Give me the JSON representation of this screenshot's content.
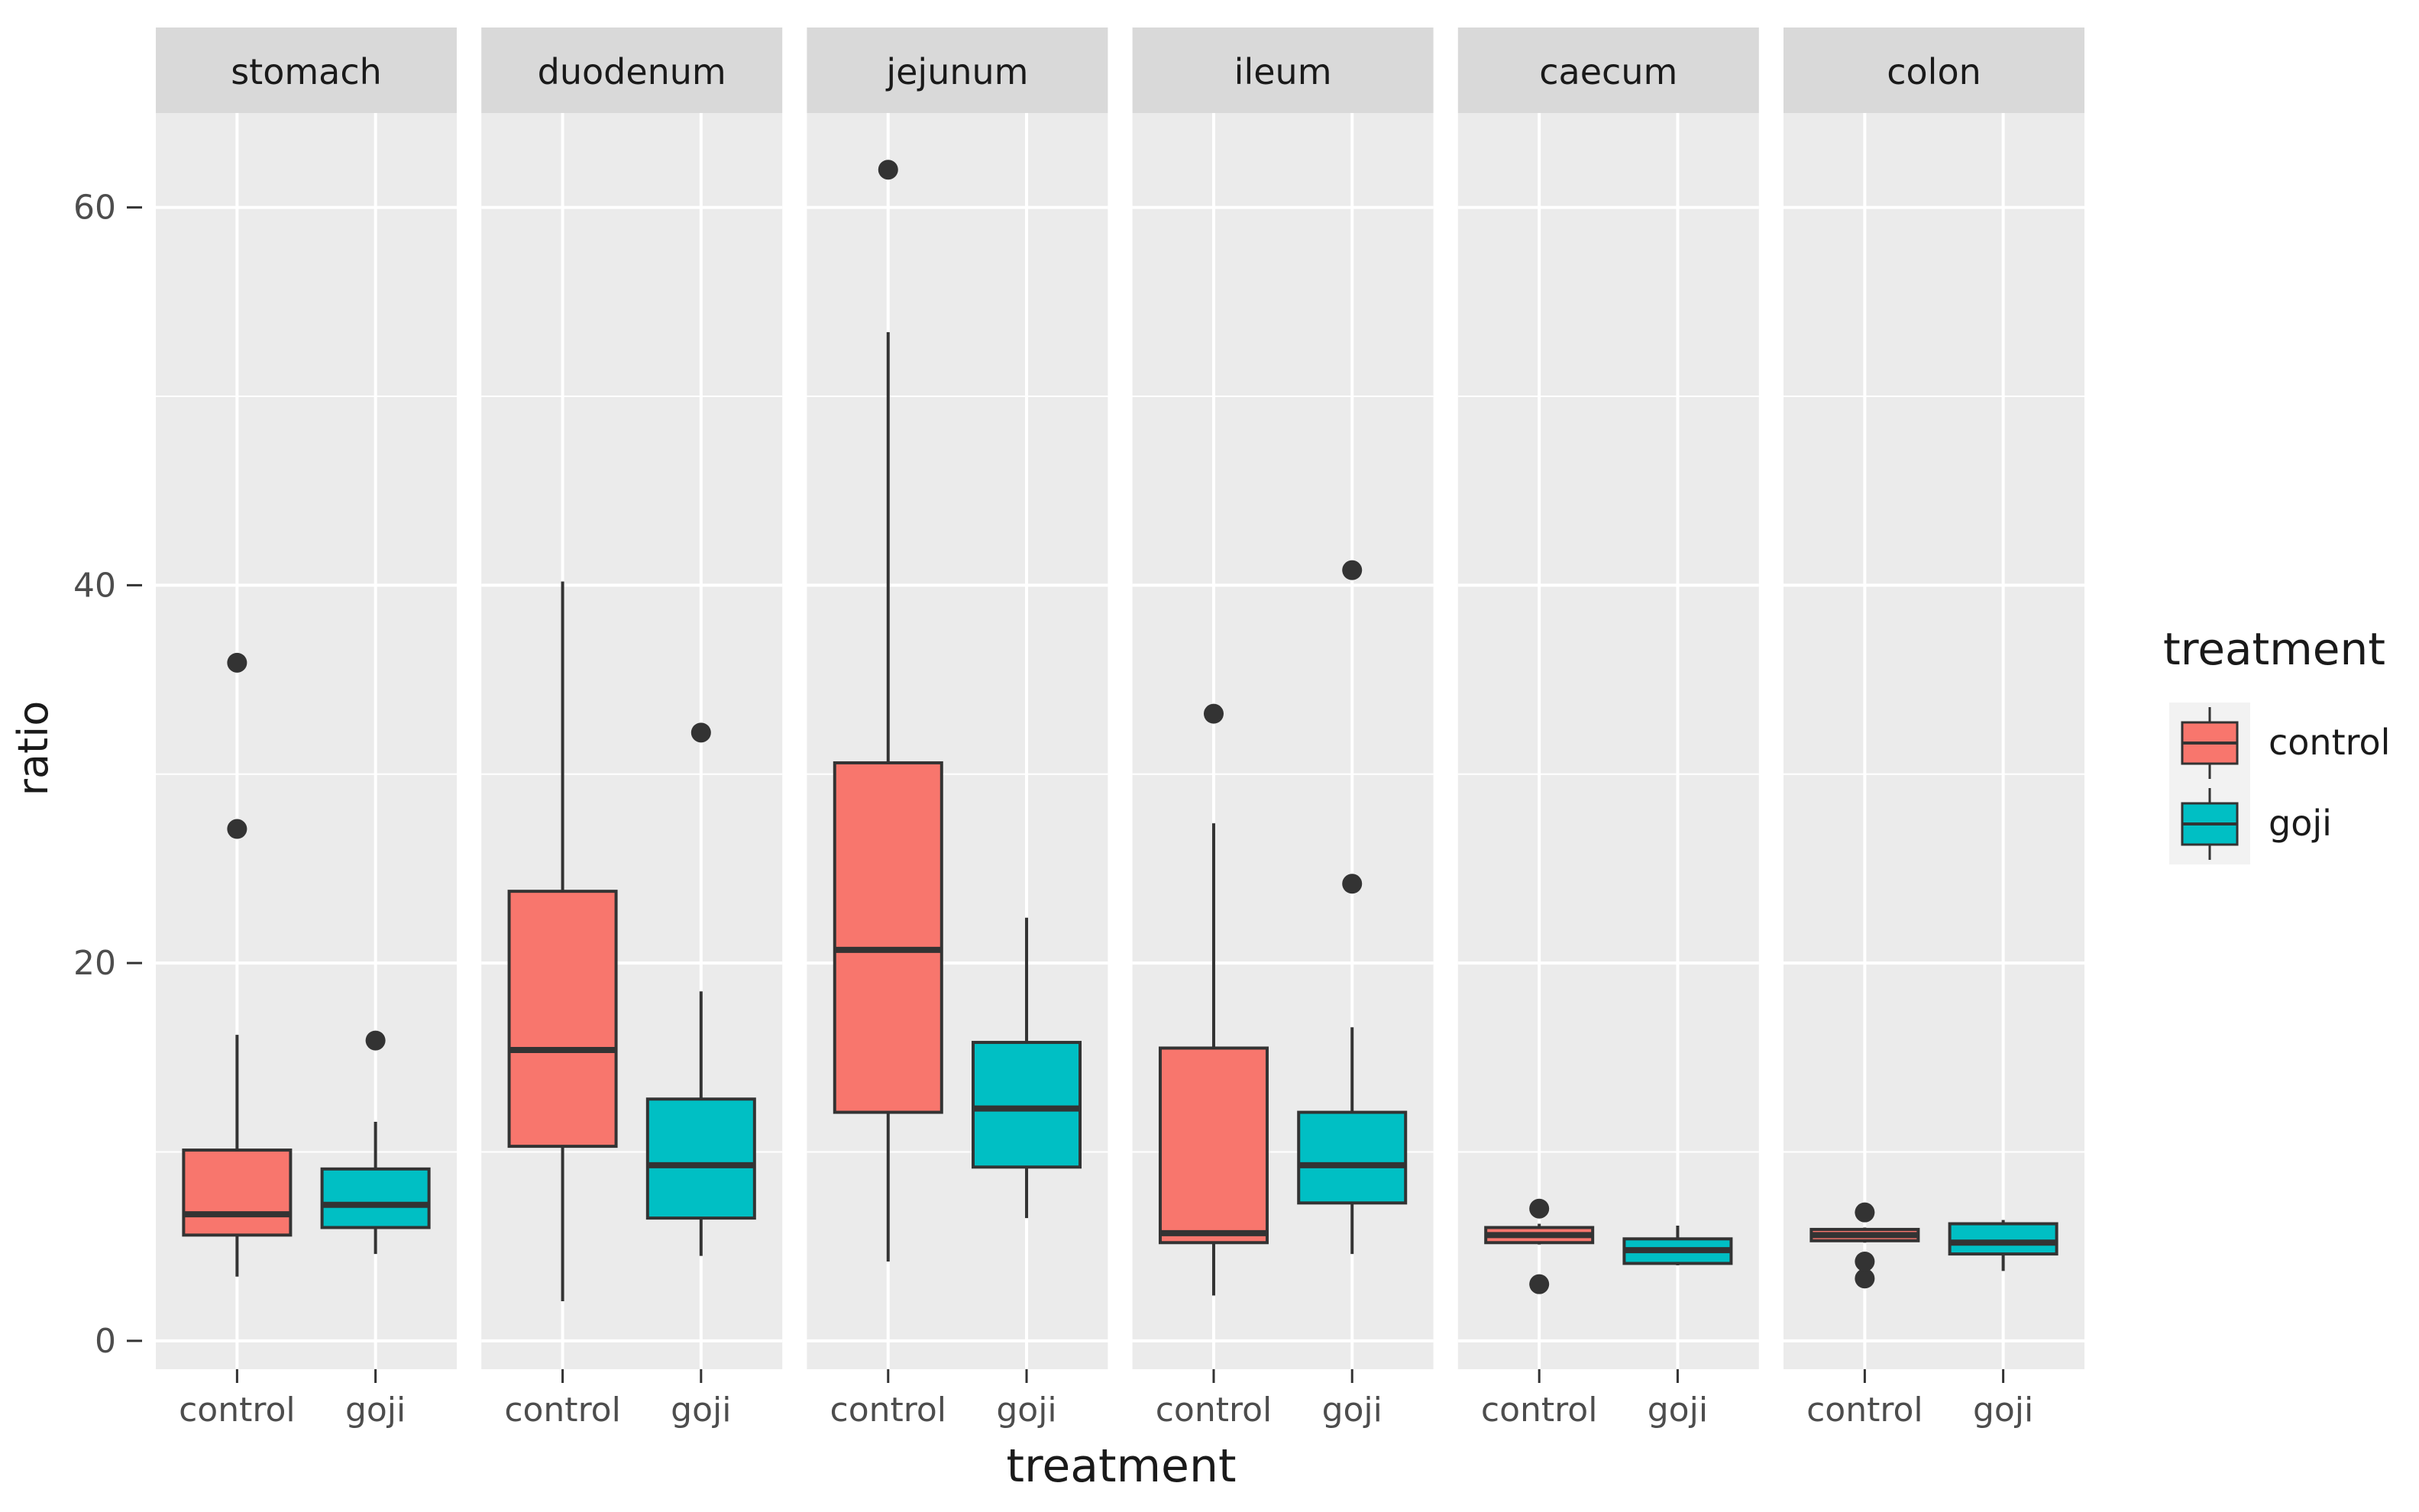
{
  "chart_data": {
    "type": "boxplot",
    "facets": [
      "stomach",
      "duodenum",
      "jejunum",
      "ileum",
      "caecum",
      "colon"
    ],
    "categories": [
      "control",
      "goji"
    ],
    "xlabel": "treatment",
    "ylabel": "ratio",
    "ylim": [
      -1.5,
      65
    ],
    "yticks": [
      0,
      20,
      40,
      60
    ],
    "grid": true,
    "legend": {
      "title": "treatment",
      "position": "right",
      "entries": [
        {
          "label": "control",
          "color": "#f8766d"
        },
        {
          "label": "goji",
          "color": "#00bfc4"
        }
      ]
    },
    "colors": {
      "control": "#f8766d",
      "goji": "#00bfc4",
      "panel": "#ebebeb",
      "strip": "#d9d9d9"
    },
    "series": [
      {
        "facet": "stomach",
        "group": "control",
        "whisker_low": 3.4,
        "q1": 5.6,
        "median": 6.7,
        "q3": 10.1,
        "whisker_high": 16.2,
        "outliers": [
          27.1,
          35.9
        ]
      },
      {
        "facet": "stomach",
        "group": "goji",
        "whisker_low": 4.6,
        "q1": 6.0,
        "median": 7.2,
        "q3": 9.1,
        "whisker_high": 11.6,
        "outliers": [
          15.9
        ]
      },
      {
        "facet": "duodenum",
        "group": "control",
        "whisker_low": 2.1,
        "q1": 10.3,
        "median": 15.4,
        "q3": 23.8,
        "whisker_high": 40.2,
        "outliers": []
      },
      {
        "facet": "duodenum",
        "group": "goji",
        "whisker_low": 4.5,
        "q1": 6.5,
        "median": 9.3,
        "q3": 12.8,
        "whisker_high": 18.5,
        "outliers": [
          32.2
        ]
      },
      {
        "facet": "jejunum",
        "group": "control",
        "whisker_low": 4.2,
        "q1": 12.1,
        "median": 20.7,
        "q3": 30.6,
        "whisker_high": 53.4,
        "outliers": [
          62.0
        ]
      },
      {
        "facet": "jejunum",
        "group": "goji",
        "whisker_low": 6.5,
        "q1": 9.2,
        "median": 12.3,
        "q3": 15.8,
        "whisker_high": 22.4,
        "outliers": []
      },
      {
        "facet": "ileum",
        "group": "control",
        "whisker_low": 2.4,
        "q1": 5.2,
        "median": 5.7,
        "q3": 15.5,
        "whisker_high": 27.4,
        "outliers": [
          33.2
        ]
      },
      {
        "facet": "ileum",
        "group": "goji",
        "whisker_low": 4.6,
        "q1": 7.3,
        "median": 9.3,
        "q3": 12.1,
        "whisker_high": 16.6,
        "outliers": [
          24.2,
          40.8
        ]
      },
      {
        "facet": "caecum",
        "group": "control",
        "whisker_low": 5.1,
        "q1": 5.2,
        "median": 5.6,
        "q3": 6.0,
        "whisker_high": 6.2,
        "outliers": [
          3.0,
          7.0
        ]
      },
      {
        "facet": "caecum",
        "group": "goji",
        "whisker_low": 4.0,
        "q1": 4.1,
        "median": 4.8,
        "q3": 5.4,
        "whisker_high": 6.1,
        "outliers": []
      },
      {
        "facet": "colon",
        "group": "control",
        "whisker_low": 5.2,
        "q1": 5.3,
        "median": 5.6,
        "q3": 5.9,
        "whisker_high": 6.0,
        "outliers": [
          3.3,
          4.2,
          6.8
        ]
      },
      {
        "facet": "colon",
        "group": "goji",
        "whisker_low": 3.7,
        "q1": 4.6,
        "median": 5.2,
        "q3": 6.2,
        "whisker_high": 6.4,
        "outliers": []
      }
    ]
  }
}
